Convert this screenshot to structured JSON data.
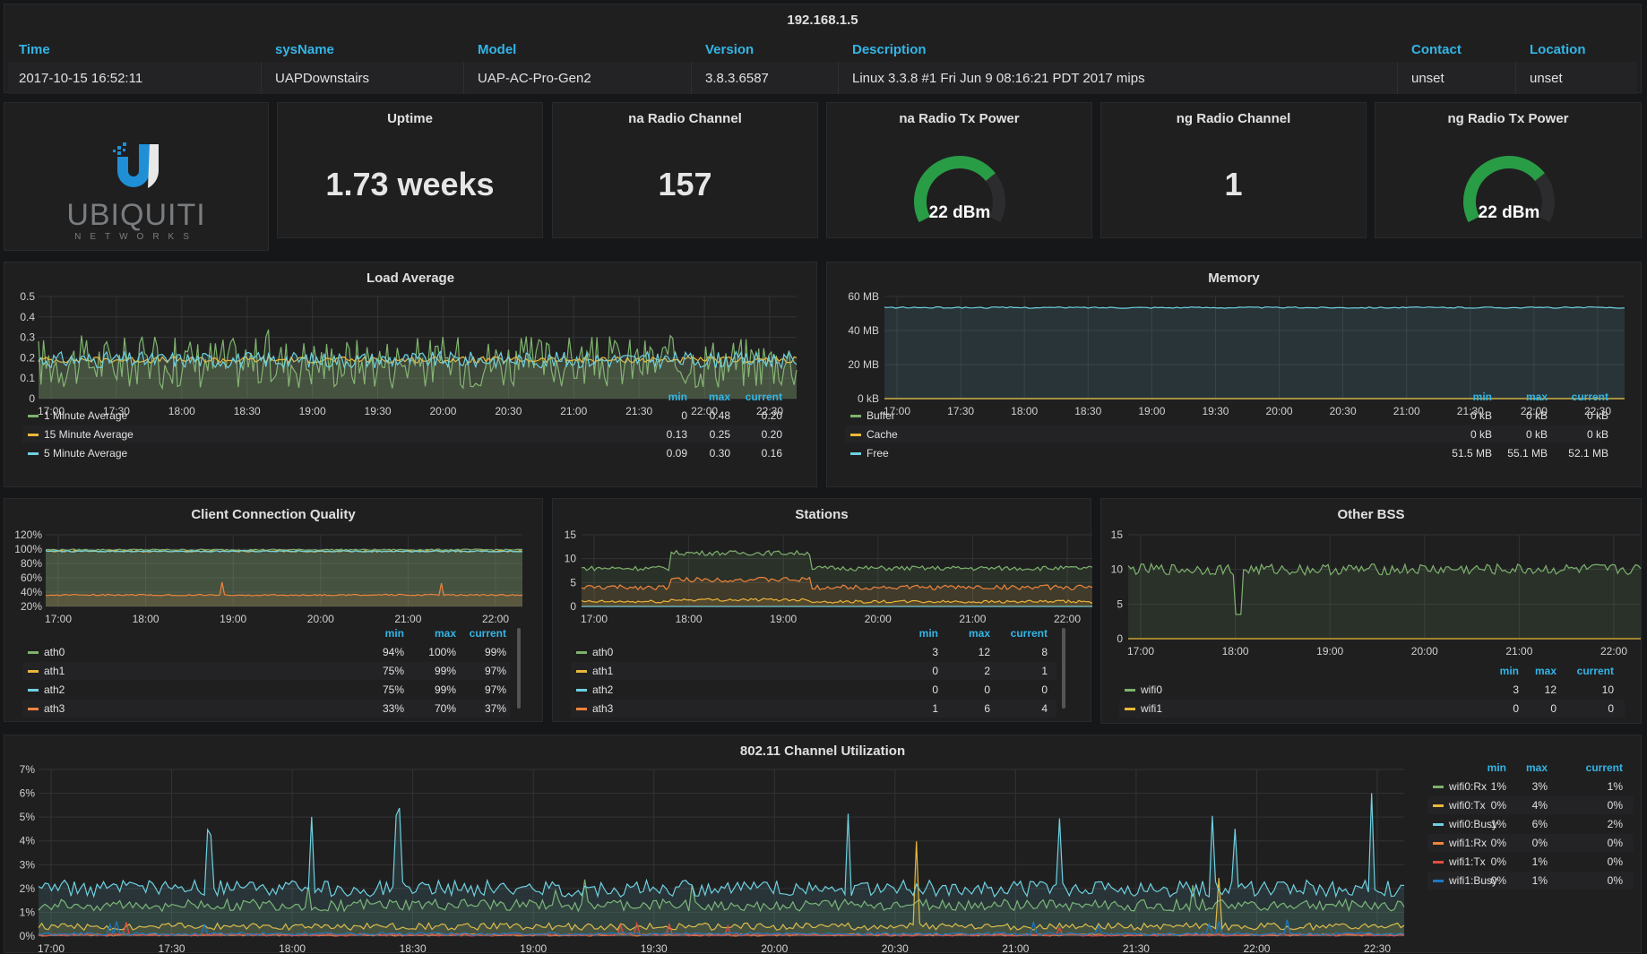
{
  "info": {
    "title": "192.168.1.5",
    "headers": [
      "Time",
      "sysName",
      "Model",
      "Version",
      "Description",
      "Contact",
      "Location"
    ],
    "row": [
      "2017-10-15 16:52:11",
      "UAPDownstairs",
      "UAP-AC-Pro-Gen2",
      "3.8.3.6587",
      "Linux 3.3.8 #1 Fri Jun 9 08:16:21 PDT 2017 mips",
      "unset",
      "unset"
    ]
  },
  "logo": {
    "brand": "UBIQUITI",
    "sub": "NETWORKS"
  },
  "stats": [
    {
      "title": "Uptime",
      "value": "1.73 weeks"
    },
    {
      "title": "na Radio Channel",
      "value": "157"
    },
    {
      "title": "ng Radio Channel",
      "value": "1"
    }
  ],
  "gauges": [
    {
      "title": "na Radio Tx Power",
      "value": "22 dBm",
      "fraction": 0.72,
      "color": "#299c46"
    },
    {
      "title": "ng Radio Tx Power",
      "value": "22 dBm",
      "fraction": 0.72,
      "color": "#299c46"
    }
  ],
  "legend_headers": {
    "min": "min",
    "max": "max",
    "current": "current"
  },
  "colors": {
    "green": "#7eb26d",
    "yellow": "#eab839",
    "cyan": "#6ed0e0",
    "orange": "#ef843c",
    "red": "#e24d42",
    "blue": "#1f78c1",
    "accent": "#33b5e5"
  },
  "panels": [
    {
      "title": "Load Average",
      "chart_data": {
        "type": "line",
        "x_ticks": [
          "17:00",
          "17:30",
          "18:00",
          "18:30",
          "19:00",
          "19:30",
          "20:00",
          "20:30",
          "21:00",
          "21:30",
          "22:00",
          "22:30"
        ],
        "y_ticks": [
          "0",
          "0.1",
          "0.2",
          "0.3",
          "0.4",
          "0.5"
        ],
        "ylim": [
          0,
          0.5
        ],
        "series": [
          {
            "name": "1 Minute Average",
            "color": "#7eb26d",
            "min": "0",
            "max": "0.48",
            "current": "0.20",
            "level": 0.18,
            "noise": 0.13,
            "spike": 0.25
          },
          {
            "name": "15 Minute Average",
            "color": "#eab839",
            "min": "0.13",
            "max": "0.25",
            "current": "0.20",
            "level": 0.19,
            "noise": 0.015,
            "spike": 0
          },
          {
            "name": "5 Minute Average",
            "color": "#6ed0e0",
            "min": "0.09",
            "max": "0.30",
            "current": "0.16",
            "level": 0.19,
            "noise": 0.04,
            "spike": 0
          }
        ]
      }
    },
    {
      "title": "Memory",
      "chart_data": {
        "type": "line",
        "x_ticks": [
          "17:00",
          "17:30",
          "18:00",
          "18:30",
          "19:00",
          "19:30",
          "20:00",
          "20:30",
          "21:00",
          "21:30",
          "22:00",
          "22:30"
        ],
        "y_ticks": [
          "0 kB",
          "20 MB",
          "40 MB",
          "60 MB"
        ],
        "ylim": [
          0,
          60
        ],
        "series": [
          {
            "name": "Buffer",
            "color": "#7eb26d",
            "min": "0 kB",
            "max": "0 kB",
            "current": "0 kB",
            "level": 0,
            "noise": 0,
            "spike": 0
          },
          {
            "name": "Cache",
            "color": "#eab839",
            "min": "0 kB",
            "max": "0 kB",
            "current": "0 kB",
            "level": 0,
            "noise": 0,
            "spike": 0
          },
          {
            "name": "Free",
            "color": "#6ed0e0",
            "min": "51.5 MB",
            "max": "55.1 MB",
            "current": "52.1 MB",
            "level": 53.5,
            "noise": 0.4,
            "spike": 0
          }
        ]
      }
    },
    {
      "title": "Client Connection Quality",
      "chart_data": {
        "type": "line",
        "x_ticks": [
          "17:00",
          "18:00",
          "19:00",
          "20:00",
          "21:00",
          "22:00"
        ],
        "y_ticks": [
          "20%",
          "40%",
          "60%",
          "80%",
          "100%",
          "120%"
        ],
        "ylim": [
          20,
          120
        ],
        "series": [
          {
            "name": "ath0",
            "color": "#7eb26d",
            "min": "94%",
            "max": "100%",
            "current": "99%",
            "level": 99,
            "noise": 1,
            "spike": 0
          },
          {
            "name": "ath1",
            "color": "#eab839",
            "min": "75%",
            "max": "99%",
            "current": "97%",
            "level": 97,
            "noise": 1,
            "spike": 0
          },
          {
            "name": "ath2",
            "color": "#6ed0e0",
            "min": "75%",
            "max": "99%",
            "current": "97%",
            "level": 97,
            "noise": 1,
            "spike": 0
          },
          {
            "name": "ath3",
            "color": "#ef843c",
            "min": "33%",
            "max": "70%",
            "current": "37%",
            "level": 36,
            "noise": 1,
            "spike": 30
          }
        ]
      }
    },
    {
      "title": "Stations",
      "chart_data": {
        "type": "line",
        "x_ticks": [
          "17:00",
          "18:00",
          "19:00",
          "20:00",
          "21:00",
          "22:00"
        ],
        "y_ticks": [
          "0",
          "5",
          "10",
          "15"
        ],
        "ylim": [
          0,
          15
        ],
        "series": [
          {
            "name": "ath0",
            "color": "#7eb26d",
            "min": "3",
            "max": "12",
            "current": "8",
            "level": 8,
            "noise": 0.5,
            "spike": 0
          },
          {
            "name": "ath1",
            "color": "#eab839",
            "min": "0",
            "max": "2",
            "current": "1",
            "level": 1,
            "noise": 0.3,
            "spike": 0
          },
          {
            "name": "ath2",
            "color": "#6ed0e0",
            "min": "0",
            "max": "0",
            "current": "0",
            "level": 0,
            "noise": 0,
            "spike": 0
          },
          {
            "name": "ath3",
            "color": "#ef843c",
            "min": "1",
            "max": "6",
            "current": "4",
            "level": 4,
            "noise": 0.5,
            "spike": 0
          }
        ]
      }
    },
    {
      "title": "Other BSS",
      "chart_data": {
        "type": "line",
        "x_ticks": [
          "17:00",
          "18:00",
          "19:00",
          "20:00",
          "21:00",
          "22:00"
        ],
        "y_ticks": [
          "0",
          "5",
          "10",
          "15"
        ],
        "ylim": [
          0,
          15
        ],
        "series": [
          {
            "name": "wifi0",
            "color": "#7eb26d",
            "min": "3",
            "max": "12",
            "current": "10",
            "level": 10,
            "noise": 0.8,
            "spike": 0
          },
          {
            "name": "wifi1",
            "color": "#eab839",
            "min": "0",
            "max": "0",
            "current": "0",
            "level": 0,
            "noise": 0,
            "spike": 0
          }
        ]
      }
    },
    {
      "title": "802.11 Channel Utilization",
      "chart_data": {
        "type": "line",
        "x_ticks": [
          "17:00",
          "17:30",
          "18:00",
          "18:30",
          "19:00",
          "19:30",
          "20:00",
          "20:30",
          "21:00",
          "21:30",
          "22:00",
          "22:30"
        ],
        "y_ticks": [
          "0%",
          "1%",
          "2%",
          "3%",
          "4%",
          "5%",
          "6%",
          "7%"
        ],
        "ylim": [
          0,
          7
        ],
        "series": [
          {
            "name": "wifi0:Rx",
            "color": "#7eb26d",
            "min": "1%",
            "max": "3%",
            "current": "1%",
            "level": 1.3,
            "noise": 0.25,
            "spike": 1.5
          },
          {
            "name": "wifi0:Tx",
            "color": "#eab839",
            "min": "0%",
            "max": "4%",
            "current": "0%",
            "level": 0.4,
            "noise": 0.15,
            "spike": 3.5
          },
          {
            "name": "wifi0:Busy",
            "color": "#6ed0e0",
            "min": "1%",
            "max": "6%",
            "current": "2%",
            "level": 2.0,
            "noise": 0.35,
            "spike": 4.3
          },
          {
            "name": "wifi1:Rx",
            "color": "#ef843c",
            "min": "0%",
            "max": "0%",
            "current": "0%",
            "level": 0.05,
            "noise": 0.05,
            "spike": 0
          },
          {
            "name": "wifi1:Tx",
            "color": "#e24d42",
            "min": "0%",
            "max": "1%",
            "current": "0%",
            "level": 0.05,
            "noise": 0.05,
            "spike": 0.5
          },
          {
            "name": "wifi1:Busy",
            "color": "#1f78c1",
            "min": "0%",
            "max": "1%",
            "current": "0%",
            "level": 0.1,
            "noise": 0.06,
            "spike": 0.6
          }
        ]
      }
    }
  ]
}
